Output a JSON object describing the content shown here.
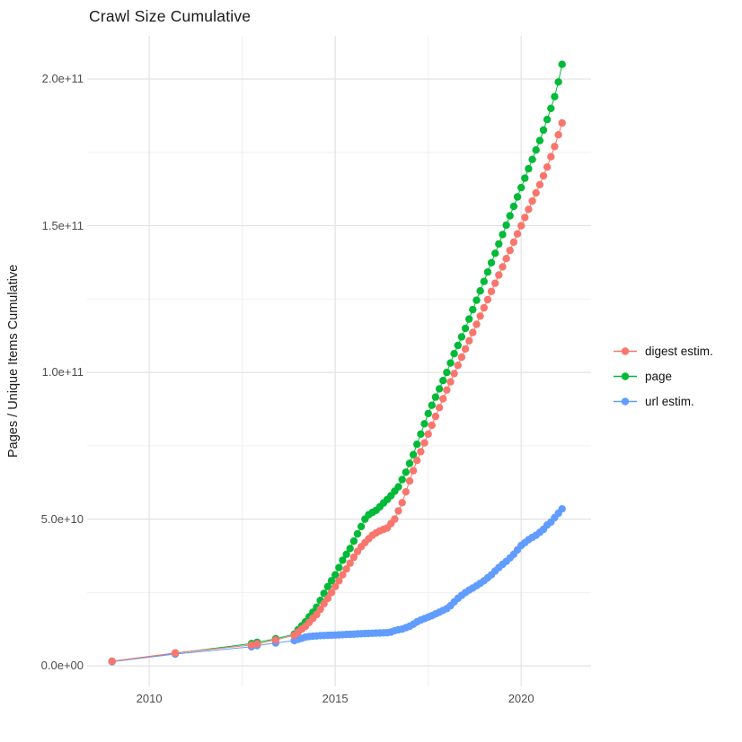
{
  "title": "Crawl Size Cumulative",
  "legend": {
    "position": "right",
    "items": [
      {
        "label": "digest estim.",
        "color": "#F8766D"
      },
      {
        "label": "page",
        "color": "#00BA38"
      },
      {
        "label": "url estim.",
        "color": "#619CFF"
      }
    ]
  },
  "chart_data": {
    "type": "line",
    "title": "Crawl Size Cumulative",
    "xlabel": "",
    "ylabel": "Pages / Unique Items Cumulative",
    "grid": "on",
    "legend_position": "right",
    "marker": "point",
    "y_values_unit": "1e9",
    "xlim": [
      2008.33,
      2021.88
    ],
    "ylim_e9": [
      -7,
      214.7
    ],
    "x_ticks": [
      {
        "value": 2010,
        "label": "2010"
      },
      {
        "value": 2015,
        "label": "2015"
      },
      {
        "value": 2020,
        "label": "2020"
      }
    ],
    "x_minor_ticks": [
      2012.5,
      2017.5
    ],
    "y_ticks": [
      {
        "value_e9": 0,
        "label": "0.0e+00"
      },
      {
        "value_e9": 50,
        "label": "5.0e+10"
      },
      {
        "value_e9": 100,
        "label": "1.0e+11"
      },
      {
        "value_e9": 150,
        "label": "1.5e+11"
      },
      {
        "value_e9": 200,
        "label": "2.0e+11"
      }
    ],
    "y_minor_ticks_e9": [
      25,
      75,
      125,
      175
    ],
    "x": [
      2009.0,
      2010.7,
      2012.75,
      2012.9,
      2013.4,
      2013.9,
      2014.0,
      2014.1,
      2014.2,
      2014.3,
      2014.4,
      2014.5,
      2014.6,
      2014.7,
      2014.8,
      2014.9,
      2015.0,
      2015.1,
      2015.2,
      2015.3,
      2015.4,
      2015.5,
      2015.6,
      2015.7,
      2015.8,
      2015.9,
      2016.0,
      2016.1,
      2016.2,
      2016.3,
      2016.4,
      2016.5,
      2016.6,
      2016.7,
      2016.8,
      2016.9,
      2017.0,
      2017.1,
      2017.2,
      2017.3,
      2017.4,
      2017.5,
      2017.6,
      2017.7,
      2017.8,
      2017.9,
      2018.0,
      2018.1,
      2018.2,
      2018.3,
      2018.4,
      2018.5,
      2018.6,
      2018.7,
      2018.8,
      2018.9,
      2019.0,
      2019.1,
      2019.2,
      2019.3,
      2019.4,
      2019.5,
      2019.6,
      2019.7,
      2019.8,
      2019.9,
      2020.0,
      2020.1,
      2020.2,
      2020.3,
      2020.4,
      2020.5,
      2020.6,
      2020.7,
      2020.8,
      2020.9,
      2021.0,
      2021.1
    ],
    "series": [
      {
        "name": "digest estim.",
        "color": "#F8766D",
        "z": 3,
        "y_e9": [
          1.6,
          4.4,
          7.1,
          7.5,
          8.8,
          10.4,
          11.5,
          12.5,
          13.5,
          14.8,
          16.2,
          17.5,
          19.3,
          21.2,
          23.0,
          25.0,
          27.0,
          29.0,
          31.0,
          33.0,
          35.0,
          37.0,
          39.0,
          40.6,
          42.0,
          43.3,
          44.5,
          45.3,
          46.0,
          46.5,
          47.0,
          48.5,
          50.0,
          52.8,
          55.6,
          59.3,
          63.0,
          66.5,
          70.0,
          73.0,
          76.0,
          79.0,
          82.0,
          85.0,
          88.0,
          91.0,
          94.0,
          96.8,
          99.6,
          102.4,
          105.2,
          108.0,
          110.8,
          113.6,
          116.4,
          119.2,
          122.0,
          124.8,
          127.6,
          130.4,
          133.2,
          136.0,
          138.8,
          141.6,
          144.4,
          147.2,
          150.0,
          152.8,
          155.6,
          158.4,
          161.2,
          164.0,
          167.0,
          170.0,
          173.5,
          177.0,
          181.0,
          185.0
        ]
      },
      {
        "name": "page",
        "color": "#00BA38",
        "z": 1,
        "y_e9": [
          1.5,
          4.3,
          7.6,
          8.0,
          9.2,
          10.8,
          12.3,
          13.6,
          15.0,
          16.7,
          18.3,
          20.0,
          22.3,
          24.7,
          27.0,
          29.0,
          31.0,
          33.5,
          36.0,
          38.0,
          40.0,
          42.5,
          45.0,
          47.5,
          50.0,
          51.5,
          52.3,
          53.0,
          54.2,
          55.5,
          56.7,
          58.0,
          59.5,
          61.0,
          63.5,
          66.0,
          69.0,
          72.0,
          75.5,
          79.0,
          82.5,
          86.0,
          88.8,
          91.6,
          94.4,
          97.2,
          100.0,
          103.2,
          106.4,
          109.2,
          112.1,
          115.0,
          118.2,
          121.4,
          124.6,
          127.8,
          131.0,
          134.2,
          137.4,
          140.6,
          143.8,
          147.0,
          150.2,
          153.4,
          156.6,
          159.8,
          163.0,
          166.2,
          169.4,
          172.6,
          175.8,
          179.0,
          182.6,
          186.2,
          190.0,
          194.0,
          199.0,
          205.0
        ]
      },
      {
        "name": "url estim.",
        "color": "#619CFF",
        "z": 2,
        "y_e9": [
          1.4,
          4.0,
          6.5,
          6.9,
          7.8,
          8.6,
          9.0,
          9.4,
          9.8,
          10.0,
          10.1,
          10.2,
          10.3,
          10.35,
          10.4,
          10.45,
          10.5,
          10.55,
          10.6,
          10.7,
          10.75,
          10.8,
          10.9,
          10.95,
          11.0,
          11.05,
          11.1,
          11.15,
          11.2,
          11.25,
          11.3,
          11.5,
          12.0,
          12.3,
          12.5,
          13.0,
          13.5,
          14.2,
          15.0,
          15.6,
          16.1,
          16.6,
          17.1,
          17.7,
          18.3,
          18.9,
          19.5,
          20.5,
          21.8,
          23.0,
          24.0,
          25.0,
          25.8,
          26.5,
          27.3,
          28.1,
          29.0,
          30.0,
          31.0,
          32.3,
          33.5,
          34.6,
          35.6,
          36.8,
          38.0,
          39.5,
          41.0,
          42.0,
          43.0,
          43.8,
          44.5,
          45.5,
          46.5,
          48.0,
          49.0,
          50.5,
          52.0,
          53.5
        ]
      }
    ]
  }
}
